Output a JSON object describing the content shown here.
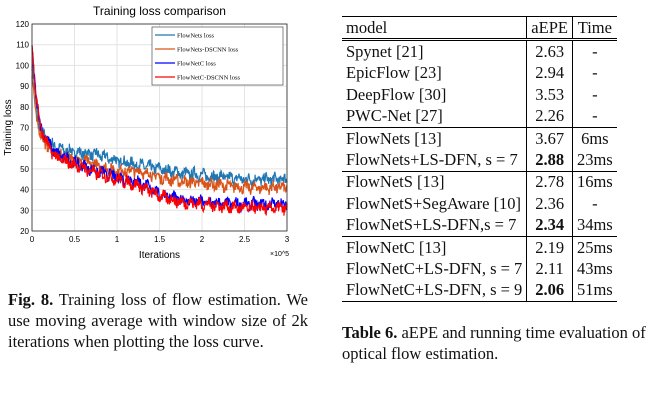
{
  "chart_data": {
    "type": "line",
    "title": "Training loss comparison",
    "xlabel": "Iterations",
    "x_multiplier": "×10^5",
    "ylabel": "Training loss",
    "xlim": [
      0,
      3
    ],
    "ylim": [
      20,
      120
    ],
    "xticks": [
      "0",
      "0.5",
      "1",
      "1.5",
      "2",
      "2.5",
      "3"
    ],
    "yticks": [
      "20",
      "30",
      "40",
      "50",
      "60",
      "70",
      "80",
      "90",
      "100",
      "110",
      "120"
    ],
    "grid": true,
    "legend": "top-right",
    "x": [
      0,
      0.05,
      0.1,
      0.2,
      0.3,
      0.5,
      0.75,
      1,
      1.25,
      1.5,
      1.75,
      2,
      2.25,
      2.5,
      2.75,
      3
    ],
    "series": [
      {
        "name": "FlowNets loss",
        "color": "#1f77b4",
        "values": [
          100,
          80,
          68,
          63,
          60,
          58,
          57,
          54,
          52,
          50,
          48,
          47,
          46,
          45,
          45,
          45
        ]
      },
      {
        "name": "FlowNets-DSCNN loss",
        "color": "#d95319",
        "values": [
          95,
          75,
          66,
          60,
          57,
          55,
          52,
          49,
          49,
          46,
          44,
          43,
          42,
          41,
          41,
          41
        ]
      },
      {
        "name": "FlowNetC loss",
        "color": "#0000ff",
        "values": [
          108,
          85,
          70,
          62,
          57,
          53,
          49,
          46,
          44,
          38,
          35,
          34,
          33,
          33,
          33,
          33
        ]
      },
      {
        "name": "FlowNetC-DSCNN loss",
        "color": "#ff0000",
        "values": [
          110,
          85,
          70,
          60,
          55,
          52,
          48,
          45,
          42,
          37,
          34,
          33,
          32,
          31,
          31,
          31
        ]
      }
    ]
  },
  "table": {
    "headers": [
      "model",
      "aEPE",
      "Time"
    ],
    "groups": [
      [
        [
          "Spynet [21]",
          "2.63",
          "-",
          false
        ],
        [
          "EpicFlow [23]",
          "2.94",
          "-",
          false
        ],
        [
          "DeepFlow [30]",
          "3.53",
          "-",
          false
        ],
        [
          "PWC-Net [27]",
          "2.26",
          "-",
          false
        ]
      ],
      [
        [
          "FlowNets [13]",
          "3.67",
          "6ms",
          false
        ],
        [
          "FlowNets+LS-DFN, s = 7",
          "2.88",
          "23ms",
          true
        ]
      ],
      [
        [
          "FlowNetS [13]",
          "2.78",
          "16ms",
          false
        ],
        [
          "FlowNetS+SegAware [10]",
          "2.36",
          "-",
          false
        ],
        [
          "FlowNetS+LS-DFN,s = 7",
          "2.34",
          "34ms",
          true
        ]
      ],
      [
        [
          "FlowNetC [13]",
          "2.19",
          "25ms",
          false
        ],
        [
          "FlowNetC+LS-DFN, s = 7",
          "2.11",
          "43ms",
          false
        ],
        [
          "FlowNetC+LS-DFN, s = 9",
          "2.06",
          "51ms",
          true
        ]
      ]
    ]
  },
  "figure_caption": {
    "label": "Fig. 8.",
    "text": " Training loss of flow estimation. We use moving average with window size of 2k iterations when plotting the loss curve."
  },
  "table_caption": {
    "label": "Table 6.",
    "text": " aEPE and running time evaluation of optical flow estimation."
  }
}
